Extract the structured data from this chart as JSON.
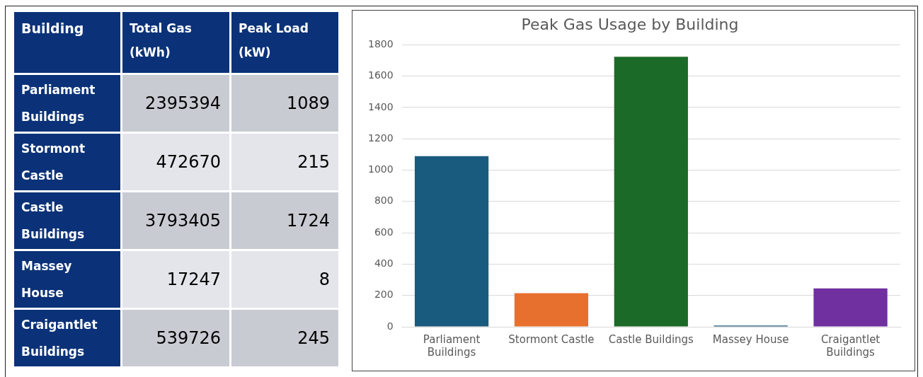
{
  "chart_data": [
    {
      "type": "other",
      "xlabel": "Building",
      "categories": [
        "Parliament Buildings",
        "Stormont Castle",
        "Castle Buildings",
        "Massey House",
        "Craigantlet Buildings"
      ],
      "series": [
        {
          "name": "Total Gas (kWh)",
          "values": [
            2395394,
            472670,
            3793405,
            17247,
            539726
          ],
          "colors": [
            "#c9cbd3",
            "#e4e5ea",
            "#c9cbd3",
            "#e4e5ea",
            "#c9cbd3"
          ]
        },
        {
          "name": "Peak Load (kW)",
          "values": [
            1089,
            215,
            1724,
            8,
            245
          ],
          "colors": [
            "#c9cbd3",
            "#e4e5ea",
            "#c9cbd3",
            "#e4e5ea",
            "#c9cbd3"
          ]
        }
      ],
      "data_labels": true
    },
    {
      "type": "bar",
      "title": "Peak Gas Usage by Building",
      "categories": [
        "Parliament Buildings",
        "Stormont Castle",
        "Castle Buildings",
        "Massey House",
        "Craigantlet Buildings"
      ],
      "values": [
        1089,
        215,
        1724,
        8,
        245
      ],
      "colors": [
        "#195b7f",
        "#e8702f",
        "#1c6a27",
        "#1b5a7a",
        "#7030a0"
      ],
      "ylim": [
        0,
        1800
      ],
      "yticks": [
        0,
        200,
        400,
        600,
        800,
        1000,
        1200,
        1400,
        1600,
        1800
      ],
      "grid": "y",
      "legend": false
    }
  ]
}
